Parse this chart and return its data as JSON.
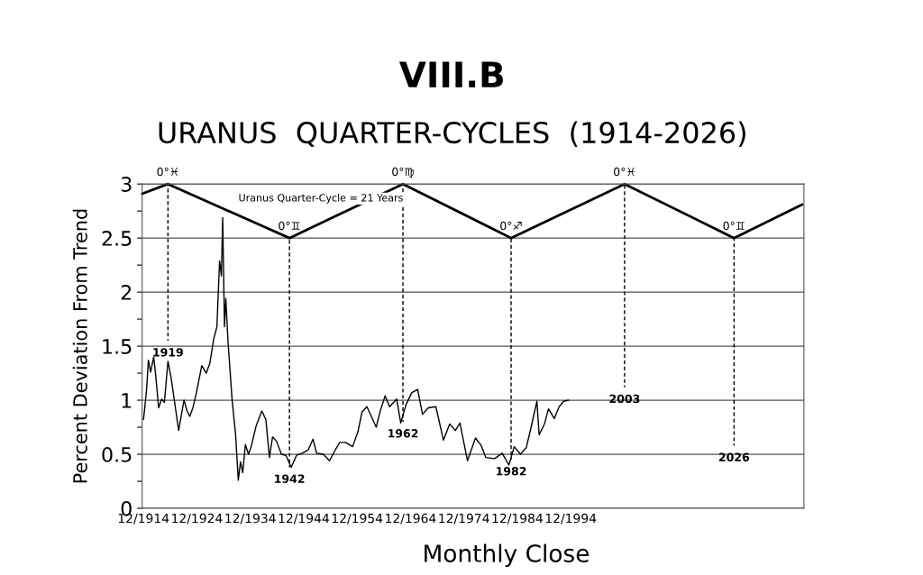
{
  "chart_data": {
    "type": "line",
    "title": "VIII.B",
    "subtitle": "URANUS  QUARTER-CYCLES  (1914-2026)",
    "xlabel": "Monthly Close",
    "ylabel": "Percent Deviation From Trend",
    "xlim": [
      "1914-09",
      "2038-08"
    ],
    "ylim": [
      0,
      3
    ],
    "xticks": [
      {
        "value": "1914-12",
        "label": "12/1914"
      },
      {
        "value": "1924-12",
        "label": "12/1924"
      },
      {
        "value": "1934-12",
        "label": "12/1934"
      },
      {
        "value": "1944-12",
        "label": "12/1944"
      },
      {
        "value": "1954-12",
        "label": "12/1954"
      },
      {
        "value": "1964-12",
        "label": "12/1964"
      },
      {
        "value": "1974-12",
        "label": "12/1974"
      },
      {
        "value": "1984-12",
        "label": "12/1984"
      },
      {
        "value": "1994-12",
        "label": "12/1994"
      }
    ],
    "yticks": [
      0,
      {
        "value": 0.25,
        "label": null
      },
      0.5,
      {
        "value": 0.75,
        "label": null
      },
      1,
      {
        "value": 1.25,
        "label": null
      },
      1.5,
      {
        "value": 1.75,
        "label": null
      },
      2,
      {
        "value": 2.25,
        "label": null
      },
      2.5,
      {
        "value": 2.75,
        "label": null
      },
      3
    ],
    "grid": "y",
    "series": [
      {
        "color": "#000000",
        "line_style": "solid",
        "x": [
          "1914-12",
          "1915-03",
          "1915-07",
          "1915-11",
          "1916-04",
          "1916-11",
          "1917-04",
          "1917-10",
          "1918-05",
          "1918-11",
          "1919-07",
          "1920-02",
          "1920-10",
          "1921-07",
          "1922-07",
          "1923-02",
          "1923-08",
          "1924-03",
          "1924-11",
          "1925-11",
          "1926-09",
          "1927-05",
          "1928-02",
          "1928-09",
          "1929-03",
          "1929-07",
          "1929-10",
          "1930-02",
          "1930-05",
          "1930-10",
          "1931-07",
          "1932-03",
          "1932-09",
          "1933-02",
          "1933-07",
          "1934-01",
          "1934-08",
          "1935-02",
          "1936-01",
          "1937-02",
          "1937-11",
          "1938-07",
          "1939-02",
          "1939-11",
          "1940-10",
          "1941-08",
          "1942-08",
          "1943-08",
          "1944-09",
          "1945-10",
          "1946-09",
          "1947-05",
          "1948-08",
          "1949-10",
          "1950-11",
          "1951-09",
          "1952-10",
          "1954-02",
          "1955-02",
          "1955-11",
          "1956-10",
          "1957-08",
          "1958-07",
          "1959-04",
          "1960-03",
          "1961-01",
          "1961-10",
          "1962-05",
          "1963-02",
          "1964-02",
          "1965-03",
          "1966-04",
          "1967-03",
          "1968-04",
          "1969-09",
          "1971-02",
          "1972-04",
          "1973-05",
          "1974-03",
          "1975-08",
          "1977-02",
          "1978-03",
          "1979-01",
          "1980-09",
          "1982-02",
          "1983-05",
          "1984-05",
          "1985-07",
          "1986-08",
          "1987-07",
          "1988-08",
          "1989-01",
          "1990-01",
          "1990-10",
          "1991-11",
          "1992-10",
          "1993-08",
          "1994-07"
        ],
        "values": [
          0.82,
          0.93,
          1.1,
          1.37,
          1.26,
          1.4,
          1.21,
          0.93,
          1.01,
          0.98,
          1.36,
          1.21,
          0.98,
          0.72,
          1.0,
          0.9,
          0.85,
          0.93,
          1.07,
          1.32,
          1.25,
          1.34,
          1.57,
          1.68,
          2.29,
          2.15,
          2.69,
          1.68,
          1.94,
          1.54,
          1.01,
          0.68,
          0.26,
          0.43,
          0.33,
          0.59,
          0.5,
          0.57,
          0.76,
          0.9,
          0.82,
          0.47,
          0.66,
          0.62,
          0.5,
          0.49,
          0.38,
          0.49,
          0.51,
          0.54,
          0.64,
          0.51,
          0.5,
          0.44,
          0.54,
          0.61,
          0.61,
          0.57,
          0.71,
          0.89,
          0.94,
          0.85,
          0.75,
          0.9,
          1.04,
          0.94,
          0.98,
          1.01,
          0.79,
          0.96,
          1.07,
          1.1,
          0.87,
          0.93,
          0.94,
          0.63,
          0.78,
          0.72,
          0.79,
          0.44,
          0.65,
          0.58,
          0.47,
          0.46,
          0.51,
          0.4,
          0.57,
          0.5,
          0.56,
          0.75,
          0.99,
          0.68,
          0.78,
          0.92,
          0.83,
          0.94,
          0.99,
          1.0
        ]
      },
      {
        "color": "#000000",
        "line_style": "solid",
        "x": [
          "1914-09",
          "1919-07",
          "1942-04",
          "1963-07",
          "1983-10",
          "2005-01",
          "2025-07",
          "2038-04"
        ],
        "values": [
          2.91,
          3,
          2.5,
          3,
          2.5,
          3,
          2.5,
          2.81
        ]
      },
      {
        "color": "#000000",
        "line_style": "dashed",
        "x": [
          "1919-07",
          "1919-07"
        ],
        "values": [
          3,
          1.55
        ]
      },
      {
        "color": "#000000",
        "line_style": "dashed",
        "x": [
          "1942-04",
          "1942-04"
        ],
        "values": [
          2.5,
          0.38
        ]
      },
      {
        "color": "#000000",
        "line_style": "dashed",
        "x": [
          "1963-07",
          "1963-07"
        ],
        "values": [
          3,
          0.8
        ]
      },
      {
        "color": "#000000",
        "line_style": "dashed",
        "x": [
          "1983-10",
          "1983-10"
        ],
        "values": [
          2.5,
          0.45
        ]
      },
      {
        "color": "#000000",
        "line_style": "dashed",
        "x": [
          "2005-01",
          "2005-01"
        ],
        "values": [
          3,
          1.12
        ]
      },
      {
        "color": "#000000",
        "line_style": "dashed",
        "x": [
          "2025-07",
          "2025-07"
        ],
        "values": [
          2.5,
          0.58
        ]
      }
    ],
    "annotations": [
      "Uranus Quarter-Cycle = 21 Years",
      {
        "text": "0°♓",
        "x": "1919-07",
        "y": 3
      },
      {
        "text": "0°♊",
        "x": "1942-04",
        "y": 2.5
      },
      {
        "text": "0°♍",
        "x": "1963-07",
        "y": 3
      },
      {
        "text": "0°♐",
        "x": "1983-10",
        "y": 2.5
      },
      {
        "text": "0°♓",
        "x": "2005-01",
        "y": 3
      },
      {
        "text": "0°♊",
        "x": "2025-07",
        "y": 2.5
      },
      {
        "text": "1919",
        "x": "1919-07",
        "y": 1.55
      },
      {
        "text": "1942",
        "x": "1942-04",
        "y": 0.38
      },
      {
        "text": "1962",
        "x": "1963-07",
        "y": 0.8
      },
      {
        "text": "1982",
        "x": "1983-10",
        "y": 0.45
      },
      {
        "text": "2003",
        "x": "2005-01",
        "y": 1.12
      },
      {
        "text": "2026",
        "x": "2025-07",
        "y": 0.58
      }
    ]
  }
}
